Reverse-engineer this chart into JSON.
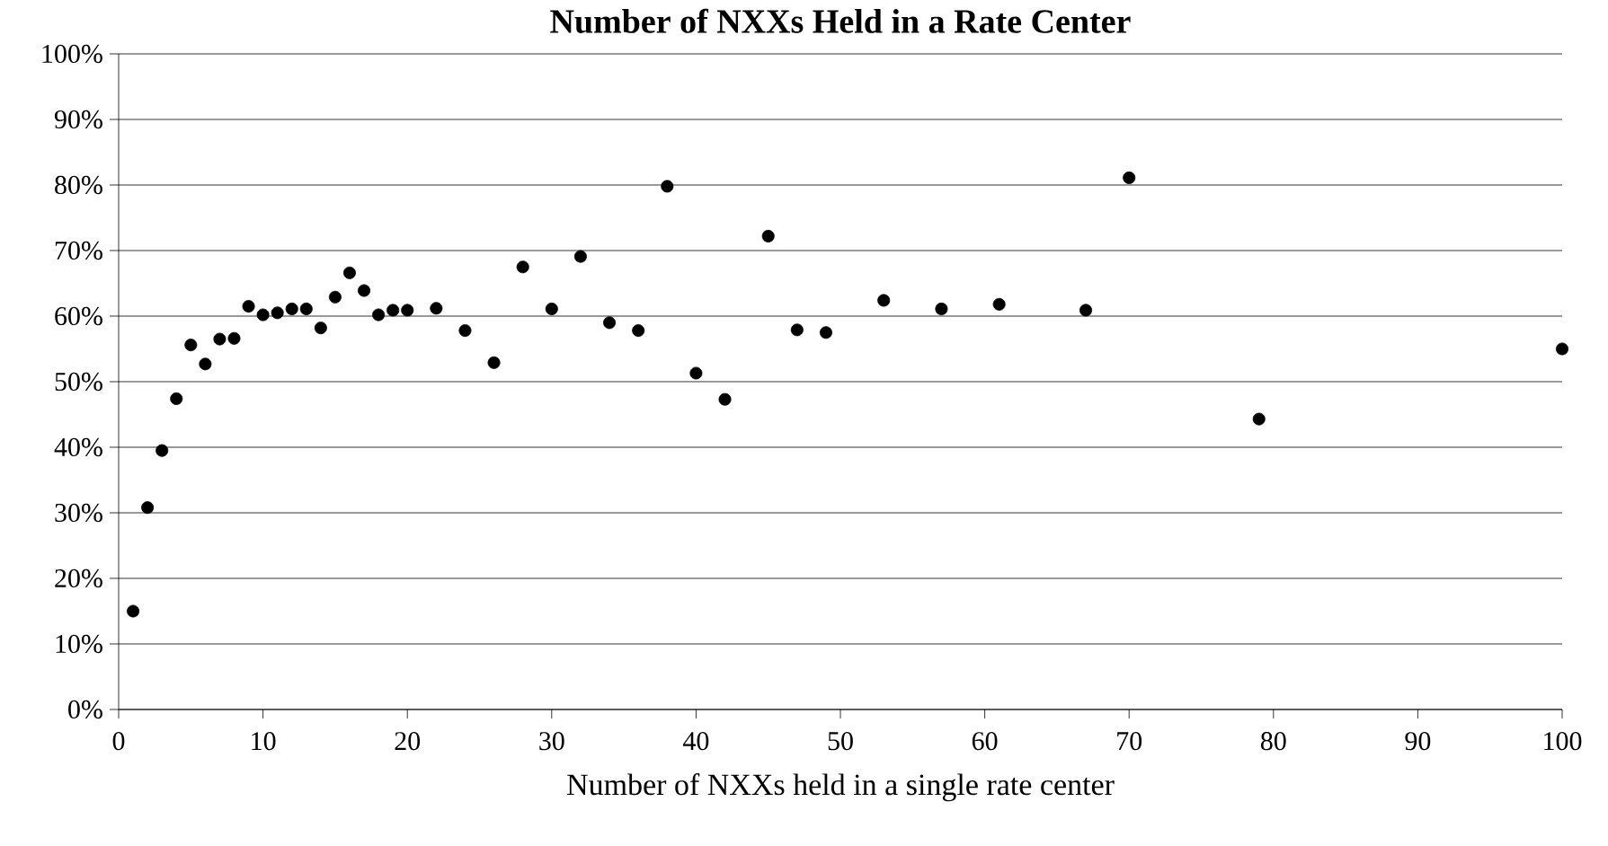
{
  "chart_data": {
    "type": "scatter",
    "title": "Number of NXXs Held in a Rate Center",
    "xlabel": "Number of NXXs held in a single rate center",
    "x": [
      1,
      2,
      3,
      4,
      5,
      6,
      7,
      8,
      9,
      10,
      11,
      12,
      13,
      14,
      15,
      16,
      17,
      18,
      19,
      20,
      22,
      24,
      26,
      28,
      30,
      32,
      34,
      36,
      38,
      40,
      42,
      45,
      47,
      49,
      53,
      57,
      61,
      67,
      70,
      79,
      100
    ],
    "values": [
      15.0,
      30.8,
      39.5,
      47.4,
      55.6,
      52.7,
      56.5,
      56.6,
      61.5,
      60.2,
      60.5,
      61.1,
      61.1,
      58.2,
      62.9,
      66.6,
      63.9,
      60.2,
      60.9,
      60.9,
      61.2,
      57.8,
      52.9,
      67.5,
      61.1,
      69.1,
      59.0,
      57.8,
      79.8,
      51.3,
      47.3,
      72.2,
      57.9,
      57.5,
      62.4,
      61.1,
      61.8,
      60.9,
      81.1,
      44.3,
      55.0
    ],
    "color": "#000000",
    "marker": "circle",
    "grid": "y",
    "xlim": [
      0,
      100
    ],
    "xticks": [
      0,
      10,
      20,
      30,
      40,
      50,
      60,
      70,
      80,
      90,
      100
    ],
    "ylim": [
      0,
      100
    ],
    "yticks": [
      {
        "value": 0,
        "label": "0%"
      },
      {
        "value": 10,
        "label": "10%"
      },
      {
        "value": 20,
        "label": "20%"
      },
      {
        "value": 30,
        "label": "30%"
      },
      {
        "value": 40,
        "label": "40%"
      },
      {
        "value": 50,
        "label": "50%"
      },
      {
        "value": 60,
        "label": "60%"
      },
      {
        "value": 70,
        "label": "70%"
      },
      {
        "value": 80,
        "label": "80%"
      },
      {
        "value": 90,
        "label": "90%"
      },
      {
        "value": 100,
        "label": "100%"
      }
    ]
  }
}
